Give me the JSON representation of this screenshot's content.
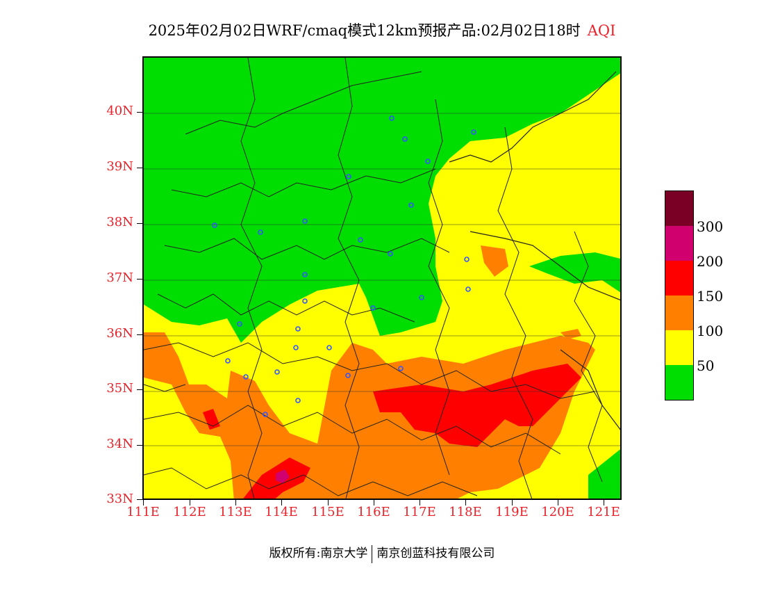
{
  "title": {
    "main": "2025年02月02日WRF/cmaq模式12km预报产品:02月02日18时",
    "tag": "AQI"
  },
  "map": {
    "lat_labels": [
      "40N",
      "39N",
      "38N",
      "37N",
      "36N",
      "35N",
      "34N",
      "33N"
    ],
    "lon_labels": [
      "111E",
      "112E",
      "113E",
      "114E",
      "115E",
      "116E",
      "117E",
      "118E",
      "119E",
      "120E",
      "121E"
    ],
    "lat_range": [
      33,
      41
    ],
    "lon_range": [
      111,
      121.4
    ]
  },
  "legend": {
    "labels": [
      "300",
      "200",
      "150",
      "100",
      "50"
    ],
    "colors": [
      "#7a0026",
      "#d1006f",
      "#ff0000",
      "#ff8000",
      "#ffff00",
      "#00dd00"
    ]
  },
  "footer": {
    "left": "版权所有:南京大学",
    "right": "南京创蓝科技有限公司"
  }
}
